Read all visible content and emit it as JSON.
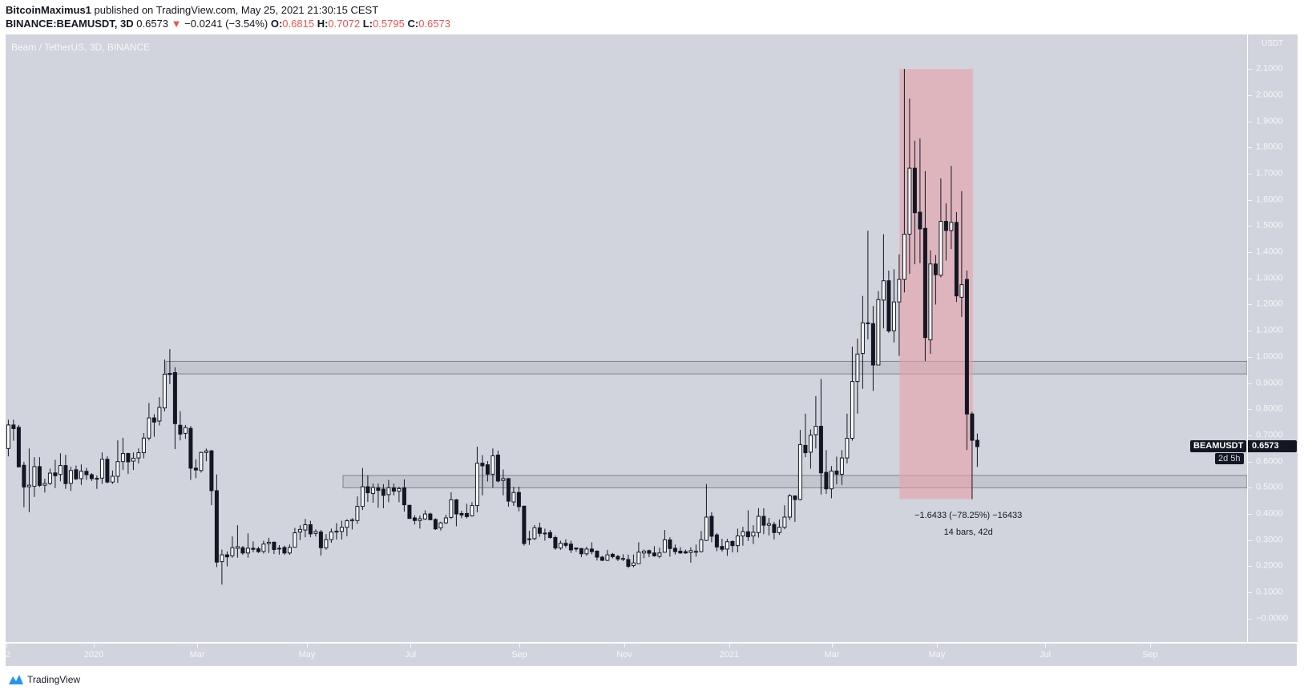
{
  "header": {
    "author": "BitcoinMaximus1",
    "published_text": "published on TradingView.com, May 25, 2021 21:30:15 CEST",
    "symbol": "BINANCE:BEAMUSDT, 3D",
    "last": "0.6573",
    "change": "−0.0241 (−3.54%)",
    "o_label": "O:",
    "o": "0.6815",
    "h_label": "H:",
    "h": "0.7072",
    "l_label": "L:",
    "l": "0.5795",
    "c_label": "C:",
    "c": "0.6573",
    "down_icon": "triangle-down-icon",
    "down_color": "#ef5350"
  },
  "pane": {
    "title": "Beam / TetherUS, 3D, BINANCE",
    "background": "#d1d4dc"
  },
  "price_axis": {
    "unit": "USDT",
    "symbol_tag": "BEAMUSDT",
    "last_price": "0.6573",
    "countdown": "2d 5h"
  },
  "footer": {
    "brand": "TradingView",
    "logo_icon": "tradingview-logo-icon"
  },
  "chart_data": {
    "type": "candlestick",
    "interval": "3D",
    "ylim": [
      -0.089,
      2.232
    ],
    "y_scale": "linear",
    "grid": false,
    "up_color": "#ffffff",
    "down_color": "#131722",
    "y_ticks": [
      {
        "value": 0.0,
        "label": "−0.0000"
      },
      {
        "value": 0.1,
        "label": "0.1000"
      },
      {
        "value": 0.2,
        "label": "0.2000"
      },
      {
        "value": 0.3,
        "label": "0.3000"
      },
      {
        "value": 0.4,
        "label": "0.4000"
      },
      {
        "value": 0.5,
        "label": "0.5000"
      },
      {
        "value": 0.6,
        "label": "0.6000"
      },
      {
        "value": 0.7,
        "label": "0.7000"
      },
      {
        "value": 0.8,
        "label": "0.8000"
      },
      {
        "value": 0.9,
        "label": "0.9000"
      },
      {
        "value": 1.0,
        "label": "1.0000"
      },
      {
        "value": 1.1,
        "label": "1.1000"
      },
      {
        "value": 1.2,
        "label": "1.2000"
      },
      {
        "value": 1.3,
        "label": "1.3000"
      },
      {
        "value": 1.4,
        "label": "1.4000"
      },
      {
        "value": 1.5,
        "label": "1.5000"
      },
      {
        "value": 1.6,
        "label": "1.6000"
      },
      {
        "value": 1.7,
        "label": "1.7000"
      },
      {
        "value": 1.8,
        "label": "1.8000"
      },
      {
        "value": 1.9,
        "label": "1.9000"
      },
      {
        "value": 2.0,
        "label": "2.0000"
      },
      {
        "value": 2.1,
        "label": "2.1000"
      }
    ],
    "x_ticks": [
      "2",
      "2020",
      "Mar",
      "May",
      "Jul",
      "Sep",
      "Nov",
      "2021",
      "Mar",
      "May",
      "Jul",
      "Sep"
    ],
    "zones": [
      {
        "from": 0.935,
        "to": 0.983
      },
      {
        "from": 0.5,
        "to": 0.547
      }
    ],
    "measure": {
      "high": 2.1,
      "low": 0.4567,
      "change_text": "−1.6433 (−78.25%) −16433",
      "span_text": "14 bars, 42d",
      "color": "#e8a0a8"
    },
    "ohlc": [
      [
        0.65,
        0.76,
        0.62,
        0.74
      ],
      [
        0.74,
        0.76,
        0.68,
        0.726
      ],
      [
        0.731,
        0.74,
        0.578,
        0.58
      ],
      [
        0.586,
        0.599,
        0.426,
        0.503
      ],
      [
        0.504,
        0.65,
        0.407,
        0.51
      ],
      [
        0.506,
        0.617,
        0.465,
        0.581
      ],
      [
        0.581,
        0.617,
        0.503,
        0.509
      ],
      [
        0.51,
        0.535,
        0.482,
        0.517
      ],
      [
        0.517,
        0.573,
        0.511,
        0.556
      ],
      [
        0.557,
        0.607,
        0.499,
        0.546
      ],
      [
        0.551,
        0.632,
        0.525,
        0.585
      ],
      [
        0.585,
        0.626,
        0.496,
        0.516
      ],
      [
        0.517,
        0.58,
        0.488,
        0.566
      ],
      [
        0.569,
        0.585,
        0.53,
        0.534
      ],
      [
        0.535,
        0.589,
        0.511,
        0.563
      ],
      [
        0.563,
        0.576,
        0.53,
        0.55
      ],
      [
        0.55,
        0.556,
        0.526,
        0.535
      ],
      [
        0.535,
        0.547,
        0.496,
        0.536
      ],
      [
        0.537,
        0.635,
        0.515,
        0.609
      ],
      [
        0.609,
        0.62,
        0.517,
        0.522
      ],
      [
        0.522,
        0.566,
        0.515,
        0.544
      ],
      [
        0.544,
        0.681,
        0.519,
        0.6
      ],
      [
        0.6,
        0.691,
        0.568,
        0.631
      ],
      [
        0.631,
        0.634,
        0.553,
        0.599
      ],
      [
        0.602,
        0.635,
        0.568,
        0.613
      ],
      [
        0.614,
        0.65,
        0.593,
        0.634
      ],
      [
        0.634,
        0.709,
        0.613,
        0.69
      ],
      [
        0.69,
        0.824,
        0.681,
        0.767
      ],
      [
        0.767,
        0.781,
        0.695,
        0.751
      ],
      [
        0.755,
        0.846,
        0.738,
        0.807
      ],
      [
        0.805,
        0.99,
        0.792,
        0.934
      ],
      [
        0.937,
        1.03,
        0.896,
        0.933
      ],
      [
        0.94,
        0.96,
        0.648,
        0.745
      ],
      [
        0.739,
        0.793,
        0.681,
        0.705
      ],
      [
        0.708,
        0.74,
        0.687,
        0.73
      ],
      [
        0.727,
        0.736,
        0.53,
        0.575
      ],
      [
        0.575,
        0.609,
        0.537,
        0.568
      ],
      [
        0.566,
        0.638,
        0.558,
        0.635
      ],
      [
        0.635,
        0.65,
        0.602,
        0.641
      ],
      [
        0.641,
        0.645,
        0.434,
        0.489
      ],
      [
        0.489,
        0.551,
        0.197,
        0.216
      ],
      [
        0.218,
        0.264,
        0.13,
        0.244
      ],
      [
        0.244,
        0.257,
        0.2,
        0.236
      ],
      [
        0.24,
        0.314,
        0.233,
        0.271
      ],
      [
        0.269,
        0.357,
        0.233,
        0.275
      ],
      [
        0.271,
        0.278,
        0.244,
        0.251
      ],
      [
        0.251,
        0.326,
        0.233,
        0.269
      ],
      [
        0.269,
        0.295,
        0.254,
        0.265
      ],
      [
        0.267,
        0.275,
        0.251,
        0.256
      ],
      [
        0.257,
        0.298,
        0.249,
        0.285
      ],
      [
        0.287,
        0.309,
        0.251,
        0.292
      ],
      [
        0.292,
        0.295,
        0.247,
        0.264
      ],
      [
        0.269,
        0.281,
        0.245,
        0.266
      ],
      [
        0.272,
        0.279,
        0.244,
        0.251
      ],
      [
        0.251,
        0.283,
        0.244,
        0.272
      ],
      [
        0.273,
        0.347,
        0.272,
        0.328
      ],
      [
        0.331,
        0.357,
        0.3,
        0.341
      ],
      [
        0.339,
        0.381,
        0.311,
        0.359
      ],
      [
        0.359,
        0.374,
        0.311,
        0.324
      ],
      [
        0.326,
        0.341,
        0.314,
        0.333
      ],
      [
        0.331,
        0.339,
        0.241,
        0.271
      ],
      [
        0.271,
        0.323,
        0.263,
        0.302
      ],
      [
        0.302,
        0.344,
        0.29,
        0.331
      ],
      [
        0.331,
        0.365,
        0.302,
        0.334
      ],
      [
        0.333,
        0.374,
        0.302,
        0.349
      ],
      [
        0.349,
        0.38,
        0.315,
        0.374
      ],
      [
        0.374,
        0.384,
        0.341,
        0.378
      ],
      [
        0.375,
        0.467,
        0.362,
        0.429
      ],
      [
        0.429,
        0.576,
        0.415,
        0.504
      ],
      [
        0.504,
        0.547,
        0.446,
        0.481
      ],
      [
        0.478,
        0.516,
        0.443,
        0.501
      ],
      [
        0.5,
        0.516,
        0.424,
        0.49
      ],
      [
        0.495,
        0.514,
        0.422,
        0.471
      ],
      [
        0.474,
        0.53,
        0.445,
        0.5
      ],
      [
        0.5,
        0.516,
        0.471,
        0.487
      ],
      [
        0.487,
        0.504,
        0.445,
        0.497
      ],
      [
        0.5,
        0.532,
        0.409,
        0.435
      ],
      [
        0.433,
        0.435,
        0.381,
        0.383
      ],
      [
        0.385,
        0.395,
        0.36,
        0.375
      ],
      [
        0.375,
        0.394,
        0.344,
        0.382
      ],
      [
        0.381,
        0.414,
        0.377,
        0.4
      ],
      [
        0.4,
        0.405,
        0.376,
        0.378
      ],
      [
        0.379,
        0.383,
        0.339,
        0.343
      ],
      [
        0.347,
        0.37,
        0.337,
        0.366
      ],
      [
        0.366,
        0.397,
        0.362,
        0.385
      ],
      [
        0.387,
        0.483,
        0.381,
        0.454
      ],
      [
        0.454,
        0.457,
        0.353,
        0.4
      ],
      [
        0.402,
        0.412,
        0.384,
        0.396
      ],
      [
        0.402,
        0.439,
        0.383,
        0.39
      ],
      [
        0.393,
        0.445,
        0.39,
        0.432
      ],
      [
        0.432,
        0.657,
        0.406,
        0.594
      ],
      [
        0.594,
        0.625,
        0.471,
        0.584
      ],
      [
        0.588,
        0.602,
        0.524,
        0.552
      ],
      [
        0.552,
        0.65,
        0.501,
        0.622
      ],
      [
        0.625,
        0.642,
        0.521,
        0.526
      ],
      [
        0.528,
        0.57,
        0.471,
        0.535
      ],
      [
        0.535,
        0.537,
        0.428,
        0.449
      ],
      [
        0.446,
        0.504,
        0.431,
        0.482
      ],
      [
        0.482,
        0.504,
        0.41,
        0.428
      ],
      [
        0.43,
        0.43,
        0.279,
        0.287
      ],
      [
        0.305,
        0.336,
        0.282,
        0.305
      ],
      [
        0.306,
        0.358,
        0.3,
        0.347
      ],
      [
        0.347,
        0.367,
        0.313,
        0.326
      ],
      [
        0.327,
        0.344,
        0.298,
        0.327
      ],
      [
        0.329,
        0.339,
        0.306,
        0.31
      ],
      [
        0.31,
        0.318,
        0.263,
        0.27
      ],
      [
        0.27,
        0.298,
        0.263,
        0.288
      ],
      [
        0.288,
        0.303,
        0.272,
        0.28
      ],
      [
        0.285,
        0.298,
        0.251,
        0.263
      ],
      [
        0.27,
        0.27,
        0.256,
        0.266
      ],
      [
        0.268,
        0.27,
        0.235,
        0.248
      ],
      [
        0.248,
        0.275,
        0.24,
        0.266
      ],
      [
        0.266,
        0.292,
        0.246,
        0.256
      ],
      [
        0.258,
        0.261,
        0.222,
        0.235
      ],
      [
        0.235,
        0.24,
        0.22,
        0.223
      ],
      [
        0.223,
        0.263,
        0.22,
        0.244
      ],
      [
        0.246,
        0.251,
        0.23,
        0.237
      ],
      [
        0.238,
        0.243,
        0.22,
        0.228
      ],
      [
        0.23,
        0.246,
        0.22,
        0.23
      ],
      [
        0.226,
        0.245,
        0.193,
        0.2
      ],
      [
        0.203,
        0.245,
        0.196,
        0.213
      ],
      [
        0.21,
        0.292,
        0.209,
        0.254
      ],
      [
        0.251,
        0.264,
        0.231,
        0.258
      ],
      [
        0.26,
        0.264,
        0.235,
        0.25
      ],
      [
        0.251,
        0.277,
        0.237,
        0.24
      ],
      [
        0.238,
        0.271,
        0.231,
        0.251
      ],
      [
        0.254,
        0.339,
        0.252,
        0.301
      ],
      [
        0.301,
        0.311,
        0.237,
        0.268
      ],
      [
        0.269,
        0.283,
        0.245,
        0.256
      ],
      [
        0.258,
        0.273,
        0.248,
        0.251
      ],
      [
        0.256,
        0.264,
        0.248,
        0.251
      ],
      [
        0.253,
        0.273,
        0.214,
        0.26
      ],
      [
        0.257,
        0.283,
        0.237,
        0.257
      ],
      [
        0.256,
        0.335,
        0.253,
        0.301
      ],
      [
        0.299,
        0.514,
        0.297,
        0.388
      ],
      [
        0.391,
        0.407,
        0.292,
        0.315
      ],
      [
        0.32,
        0.327,
        0.258,
        0.274
      ],
      [
        0.276,
        0.305,
        0.256,
        0.265
      ],
      [
        0.266,
        0.305,
        0.24,
        0.294
      ],
      [
        0.295,
        0.299,
        0.253,
        0.279
      ],
      [
        0.279,
        0.344,
        0.253,
        0.316
      ],
      [
        0.316,
        0.351,
        0.279,
        0.332
      ],
      [
        0.332,
        0.414,
        0.297,
        0.313
      ],
      [
        0.316,
        0.357,
        0.285,
        0.33
      ],
      [
        0.329,
        0.422,
        0.31,
        0.391
      ],
      [
        0.391,
        0.422,
        0.323,
        0.357
      ],
      [
        0.357,
        0.385,
        0.318,
        0.363
      ],
      [
        0.36,
        0.37,
        0.303,
        0.329
      ],
      [
        0.329,
        0.379,
        0.32,
        0.349
      ],
      [
        0.349,
        0.433,
        0.342,
        0.388
      ],
      [
        0.388,
        0.476,
        0.377,
        0.469
      ],
      [
        0.469,
        0.47,
        0.37,
        0.455
      ],
      [
        0.455,
        0.721,
        0.452,
        0.665
      ],
      [
        0.662,
        0.783,
        0.617,
        0.634
      ],
      [
        0.636,
        0.723,
        0.573,
        0.701
      ],
      [
        0.703,
        0.85,
        0.65,
        0.735
      ],
      [
        0.735,
        0.916,
        0.475,
        0.557
      ],
      [
        0.559,
        0.644,
        0.477,
        0.496
      ],
      [
        0.496,
        0.583,
        0.46,
        0.564
      ],
      [
        0.564,
        0.619,
        0.513,
        0.552
      ],
      [
        0.552,
        0.644,
        0.511,
        0.614
      ],
      [
        0.614,
        0.783,
        0.593,
        0.689
      ],
      [
        0.689,
        1.039,
        0.68,
        0.906
      ],
      [
        0.906,
        1.07,
        0.783,
        1.011
      ],
      [
        1.013,
        1.233,
        0.878,
        1.13
      ],
      [
        1.13,
        1.482,
        1.067,
        1.129
      ],
      [
        1.127,
        1.195,
        0.87,
        0.969
      ],
      [
        0.969,
        1.251,
        0.968,
        1.219
      ],
      [
        1.217,
        1.469,
        1.109,
        1.291
      ],
      [
        1.291,
        1.33,
        1.092,
        1.099
      ],
      [
        1.1,
        1.335,
        1.055,
        1.21
      ],
      [
        1.21,
        1.392,
        1.004,
        1.296
      ],
      [
        1.296,
        2.1,
        1.246,
        1.469
      ],
      [
        1.469,
        1.987,
        1.317,
        1.721
      ],
      [
        1.721,
        1.826,
        1.354,
        1.551
      ],
      [
        1.553,
        1.835,
        1.358,
        1.489
      ],
      [
        1.491,
        1.71,
        0.984,
        1.074
      ],
      [
        1.065,
        1.407,
        1.012,
        1.355
      ],
      [
        1.355,
        1.389,
        1.2,
        1.314
      ],
      [
        1.312,
        1.682,
        1.304,
        1.518
      ],
      [
        1.518,
        1.587,
        1.368,
        1.483
      ],
      [
        1.483,
        1.73,
        1.412,
        1.514
      ],
      [
        1.514,
        1.553,
        1.21,
        1.233
      ],
      [
        1.228,
        1.633,
        1.153,
        1.276
      ],
      [
        1.296,
        1.33,
        0.644,
        0.782
      ],
      [
        0.782,
        0.79,
        0.4567,
        0.6815
      ],
      [
        0.6815,
        0.7072,
        0.5795,
        0.6573
      ]
    ]
  }
}
